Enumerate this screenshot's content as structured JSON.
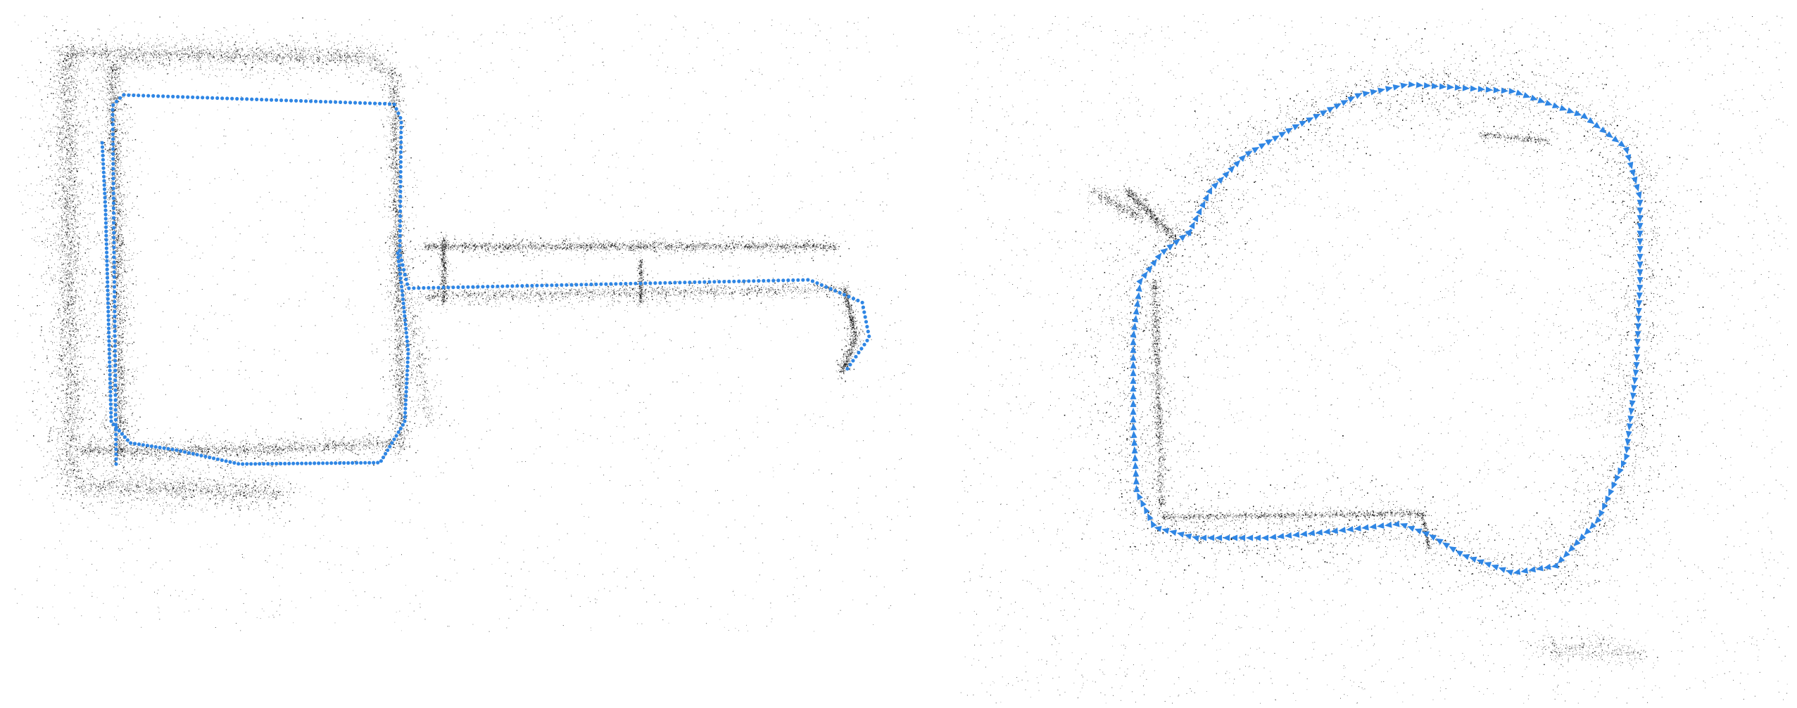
{
  "image": {
    "background_color": "#ffffff",
    "point_color": "#000000",
    "trajectory_color": "#2f86e4"
  },
  "panels": [
    {
      "content": "point-cloud-map-with-camera-trajectory",
      "trajectory_marker": "dots"
    },
    {
      "content": "point-cloud-map-with-camera-trajectory",
      "trajectory_marker": "arrowheads"
    }
  ]
}
